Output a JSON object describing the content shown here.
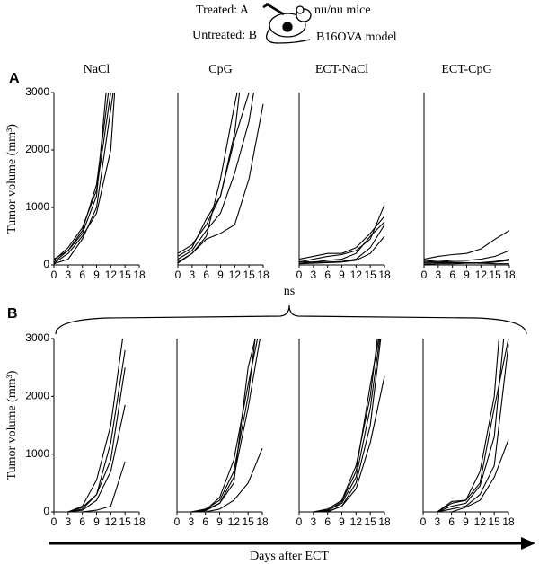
{
  "header": {
    "treated": "Treated: A",
    "untreated": "Untreated: B",
    "mice": "nu/nu mice",
    "model": "B16OVA model"
  },
  "panel_labels": [
    "A",
    "B"
  ],
  "annotations": {
    "significance": "ns",
    "x_axis_label": "Days after ECT"
  },
  "chart_data": [
    {
      "type": "line",
      "title": "NaCl",
      "ylabel": "Tumor volume (mm³)",
      "xlim": [
        0,
        18
      ],
      "ylim": [
        0,
        3000
      ],
      "xticks": [
        0,
        3,
        6,
        9,
        12,
        15,
        18
      ],
      "yticks": [
        0,
        1000,
        2000,
        3000
      ],
      "color": "#000000",
      "series": [
        {
          "x": [
            0,
            3,
            6,
            9,
            11.5
          ],
          "values": [
            50,
            250,
            600,
            1400,
            3000
          ]
        },
        {
          "x": [
            0,
            3,
            6,
            9,
            12
          ],
          "values": [
            80,
            300,
            650,
            1300,
            3000
          ]
        },
        {
          "x": [
            0,
            3,
            6,
            9,
            12,
            12.8
          ],
          "values": [
            30,
            200,
            500,
            900,
            2000,
            3000
          ]
        },
        {
          "x": [
            0,
            3,
            6,
            9,
            11
          ],
          "values": [
            100,
            250,
            550,
            1200,
            3000
          ]
        },
        {
          "x": [
            0,
            3,
            6,
            9,
            12.5
          ],
          "values": [
            20,
            100,
            450,
            1000,
            3000
          ]
        }
      ]
    },
    {
      "type": "line",
      "title": "CpG",
      "xlim": [
        0,
        18
      ],
      "ylim": [
        0,
        3000
      ],
      "xticks": [
        0,
        3,
        6,
        9,
        12,
        15,
        18
      ],
      "color": "#000000",
      "series": [
        {
          "x": [
            0,
            3,
            6,
            9,
            12,
            12.5
          ],
          "values": [
            30,
            200,
            500,
            1500,
            2800,
            3000
          ]
        },
        {
          "x": [
            0,
            3,
            6,
            9,
            12,
            13
          ],
          "values": [
            200,
            350,
            700,
            1200,
            2300,
            3000
          ]
        },
        {
          "x": [
            0,
            3,
            6,
            9,
            12,
            15,
            16
          ],
          "values": [
            100,
            250,
            600,
            900,
            1600,
            2500,
            3000
          ]
        },
        {
          "x": [
            0,
            3,
            6,
            9,
            12,
            15,
            18
          ],
          "values": [
            50,
            200,
            450,
            550,
            700,
            1500,
            2800
          ]
        },
        {
          "x": [
            0,
            3,
            6,
            9,
            12,
            15
          ],
          "values": [
            150,
            300,
            800,
            1200,
            2200,
            3000
          ]
        }
      ]
    },
    {
      "type": "line",
      "title": "ECT-NaCl",
      "xlim": [
        0,
        18
      ],
      "ylim": [
        0,
        3000
      ],
      "xticks": [
        0,
        3,
        6,
        9,
        12,
        15,
        18
      ],
      "color": "#000000",
      "series": [
        {
          "x": [
            0,
            3,
            6,
            9,
            12,
            15,
            18
          ],
          "values": [
            50,
            100,
            150,
            180,
            250,
            450,
            1050
          ]
        },
        {
          "x": [
            0,
            3,
            6,
            9,
            12,
            15,
            18
          ],
          "values": [
            100,
            150,
            200,
            200,
            300,
            550,
            850
          ]
        },
        {
          "x": [
            0,
            3,
            6,
            9,
            12,
            15,
            18
          ],
          "values": [
            30,
            50,
            80,
            100,
            200,
            500,
            750
          ]
        },
        {
          "x": [
            0,
            3,
            6,
            9,
            12,
            15,
            18
          ],
          "values": [
            60,
            50,
            50,
            60,
            100,
            300,
            700
          ]
        },
        {
          "x": [
            0,
            3,
            6,
            9,
            12,
            15,
            18
          ],
          "values": [
            20,
            30,
            40,
            50,
            80,
            200,
            500
          ]
        }
      ]
    },
    {
      "type": "line",
      "title": "ECT-CpG",
      "xlim": [
        0,
        18
      ],
      "ylim": [
        0,
        3000
      ],
      "xticks": [
        0,
        3,
        6,
        9,
        12,
        15,
        18
      ],
      "color": "#000000",
      "series": [
        {
          "x": [
            0,
            3,
            6,
            9,
            12,
            15,
            18
          ],
          "values": [
            100,
            150,
            180,
            200,
            280,
            450,
            600
          ]
        },
        {
          "x": [
            0,
            3,
            6,
            9,
            12,
            15,
            18
          ],
          "values": [
            50,
            60,
            80,
            80,
            100,
            150,
            250
          ]
        },
        {
          "x": [
            0,
            3,
            6,
            9,
            12,
            15,
            18
          ],
          "values": [
            30,
            40,
            40,
            30,
            30,
            50,
            80
          ]
        },
        {
          "x": [
            0,
            3,
            6,
            9,
            12,
            15,
            18
          ],
          "values": [
            80,
            60,
            50,
            40,
            30,
            20,
            20
          ]
        },
        {
          "x": [
            0,
            3,
            6,
            9,
            12,
            15,
            18
          ],
          "values": [
            10,
            20,
            20,
            30,
            40,
            60,
            100
          ]
        }
      ]
    },
    {
      "type": "line",
      "ylabel": "Tumor volume (mm³)",
      "xlim": [
        0,
        18
      ],
      "ylim": [
        0,
        3000
      ],
      "xticks": [
        0,
        3,
        6,
        9,
        12,
        15,
        18
      ],
      "yticks": [
        0,
        1000,
        2000,
        3000
      ],
      "color": "#000000",
      "series": [
        {
          "x": [
            3,
            6,
            9,
            12,
            14.5
          ],
          "values": [
            0,
            100,
            550,
            1500,
            3000
          ]
        },
        {
          "x": [
            3,
            6,
            9,
            12,
            15
          ],
          "values": [
            0,
            80,
            300,
            1200,
            2800
          ]
        },
        {
          "x": [
            3,
            6,
            9,
            12,
            15
          ],
          "values": [
            0,
            50,
            300,
            900,
            2500
          ]
        },
        {
          "x": [
            3,
            6,
            9,
            12,
            15
          ],
          "values": [
            0,
            30,
            200,
            700,
            1850
          ]
        },
        {
          "x": [
            3,
            6,
            9,
            12,
            15
          ],
          "values": [
            0,
            0,
            30,
            100,
            870
          ]
        }
      ]
    },
    {
      "type": "line",
      "xlim": [
        0,
        18
      ],
      "ylim": [
        0,
        3000
      ],
      "xticks": [
        0,
        3,
        6,
        9,
        12,
        15,
        18
      ],
      "color": "#000000",
      "series": [
        {
          "x": [
            3,
            6,
            9,
            12,
            15,
            16.5
          ],
          "values": [
            0,
            50,
            200,
            700,
            2000,
            3000
          ]
        },
        {
          "x": [
            3,
            6,
            9,
            12,
            15,
            17
          ],
          "values": [
            0,
            30,
            250,
            900,
            2200,
            3000
          ]
        },
        {
          "x": [
            3,
            6,
            9,
            12,
            15,
            17.5
          ],
          "values": [
            0,
            40,
            150,
            600,
            1800,
            3000
          ]
        },
        {
          "x": [
            3,
            6,
            9,
            12,
            15,
            16.5
          ],
          "values": [
            0,
            20,
            150,
            500,
            2500,
            3000
          ]
        },
        {
          "x": [
            3,
            6,
            9,
            12,
            15,
            18
          ],
          "values": [
            0,
            0,
            50,
            200,
            500,
            1100
          ]
        }
      ]
    },
    {
      "type": "line",
      "xlim": [
        0,
        18
      ],
      "ylim": [
        0,
        3000
      ],
      "xticks": [
        0,
        3,
        6,
        9,
        12,
        15,
        18
      ],
      "color": "#000000",
      "series": [
        {
          "x": [
            3,
            6,
            9,
            12,
            15,
            16.5
          ],
          "values": [
            0,
            50,
            200,
            800,
            2000,
            3000
          ]
        },
        {
          "x": [
            3,
            6,
            9,
            12,
            15,
            17
          ],
          "values": [
            0,
            30,
            150,
            600,
            1800,
            3000
          ]
        },
        {
          "x": [
            3,
            6,
            9,
            12,
            15,
            16.8
          ],
          "values": [
            0,
            20,
            180,
            700,
            2200,
            3000
          ]
        },
        {
          "x": [
            3,
            6,
            9,
            12,
            15,
            18
          ],
          "values": [
            0,
            10,
            100,
            400,
            1200,
            2350
          ]
        },
        {
          "x": [
            3,
            6,
            9,
            12,
            15,
            17.2
          ],
          "values": [
            0,
            0,
            100,
            500,
            1500,
            3000
          ]
        }
      ]
    },
    {
      "type": "line",
      "xlim": [
        0,
        18
      ],
      "ylim": [
        0,
        3000
      ],
      "xticks": [
        0,
        3,
        6,
        9,
        12,
        15,
        18
      ],
      "color": "#000000",
      "series": [
        {
          "x": [
            3,
            6,
            9,
            12,
            15,
            16
          ],
          "values": [
            0,
            150,
            200,
            700,
            2000,
            3000
          ]
        },
        {
          "x": [
            3,
            6,
            9,
            12,
            15,
            18
          ],
          "values": [
            0,
            180,
            200,
            500,
            1800,
            3000
          ]
        },
        {
          "x": [
            3,
            6,
            9,
            12,
            15,
            17
          ],
          "values": [
            0,
            100,
            150,
            450,
            1300,
            3000
          ]
        },
        {
          "x": [
            3,
            6,
            9,
            12,
            15,
            18
          ],
          "values": [
            0,
            50,
            100,
            300,
            800,
            2900
          ]
        },
        {
          "x": [
            3,
            6,
            9,
            12,
            15,
            18
          ],
          "values": [
            0,
            0,
            80,
            200,
            600,
            1250
          ]
        }
      ]
    }
  ]
}
